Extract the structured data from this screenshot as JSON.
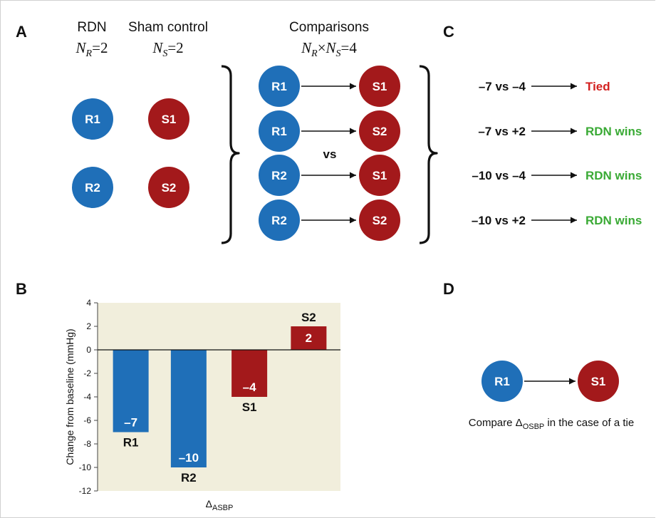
{
  "panels": {
    "a": "A",
    "b": "B",
    "c": "C",
    "d": "D"
  },
  "colors": {
    "rdn": "#1f6fb8",
    "sham": "#a3191b",
    "tied": "#d3201f",
    "wins": "#3aaa35",
    "plot_bg": "#f1eedc"
  },
  "panel_a": {
    "rdn_title": "RDN",
    "rdn_count": {
      "n": "N",
      "sub": "R",
      "rest": "=2"
    },
    "sham_title": "Sham control",
    "sham_count": {
      "n": "N",
      "sub": "S",
      "rest": "=2"
    },
    "comparisons_title": "Comparisons",
    "comparisons_count": {
      "n1": "N",
      "sub1": "R",
      "times": "×",
      "n2": "N",
      "sub2": "S",
      "rest": "=4"
    },
    "rdn_patients": [
      "R1",
      "R2"
    ],
    "sham_patients": [
      "S1",
      "S2"
    ],
    "pairs": [
      [
        "R1",
        "S1"
      ],
      [
        "R1",
        "S2"
      ],
      [
        "R2",
        "S1"
      ],
      [
        "R2",
        "S2"
      ]
    ],
    "vs_label": "vs"
  },
  "panel_c": {
    "rows": [
      {
        "comparison": "–7 vs –4",
        "result": "Tied",
        "status": "tied"
      },
      {
        "comparison": "–7 vs +2",
        "result": "RDN wins",
        "status": "wins"
      },
      {
        "comparison": "–10 vs –4",
        "result": "RDN wins",
        "status": "wins"
      },
      {
        "comparison": "–10 vs +2",
        "result": "RDN wins",
        "status": "wins"
      }
    ]
  },
  "panel_d": {
    "from": "R1",
    "to": "S1",
    "note": {
      "before": "Compare ",
      "delta": "Δ",
      "sub": "OSBP",
      "after": " in the case of a tie"
    }
  },
  "chart_data": {
    "type": "bar",
    "categories": [
      "R1",
      "R2",
      "S1",
      "S2"
    ],
    "values": [
      -7,
      -10,
      -4,
      2
    ],
    "value_labels": [
      "–7",
      "–10",
      "–4",
      "2"
    ],
    "groups": [
      "rdn",
      "rdn",
      "sham",
      "sham"
    ],
    "ylabel": "Change from baseline (mmHg)",
    "xlabel": {
      "delta": "Δ",
      "sub": "ASBP"
    },
    "ylim": [
      -12,
      4
    ],
    "yticks": [
      "4",
      "2",
      "0",
      "-2",
      "-4",
      "-6",
      "-8",
      "-10",
      "-12"
    ],
    "grid": false,
    "legend": "none"
  }
}
